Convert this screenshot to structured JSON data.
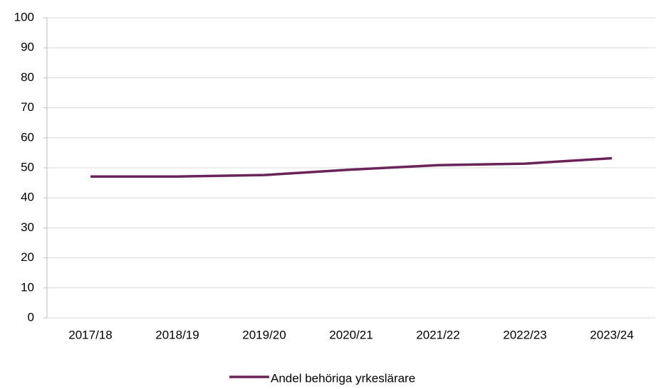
{
  "chart_data": {
    "type": "line",
    "categories": [
      "2017/18",
      "2018/19",
      "2019/20",
      "2020/21",
      "2021/22",
      "2022/23",
      "2023/24"
    ],
    "series": [
      {
        "name": "Andel behöriga yrkeslärare",
        "color": "#6b2458",
        "values": [
          47.1,
          47.1,
          47.6,
          49.4,
          50.9,
          51.4,
          53.2
        ]
      }
    ],
    "ylim": [
      0,
      100
    ],
    "yticks": [
      0,
      10,
      20,
      30,
      40,
      50,
      60,
      70,
      80,
      90,
      100
    ],
    "grid": true,
    "legend": "bottom"
  }
}
